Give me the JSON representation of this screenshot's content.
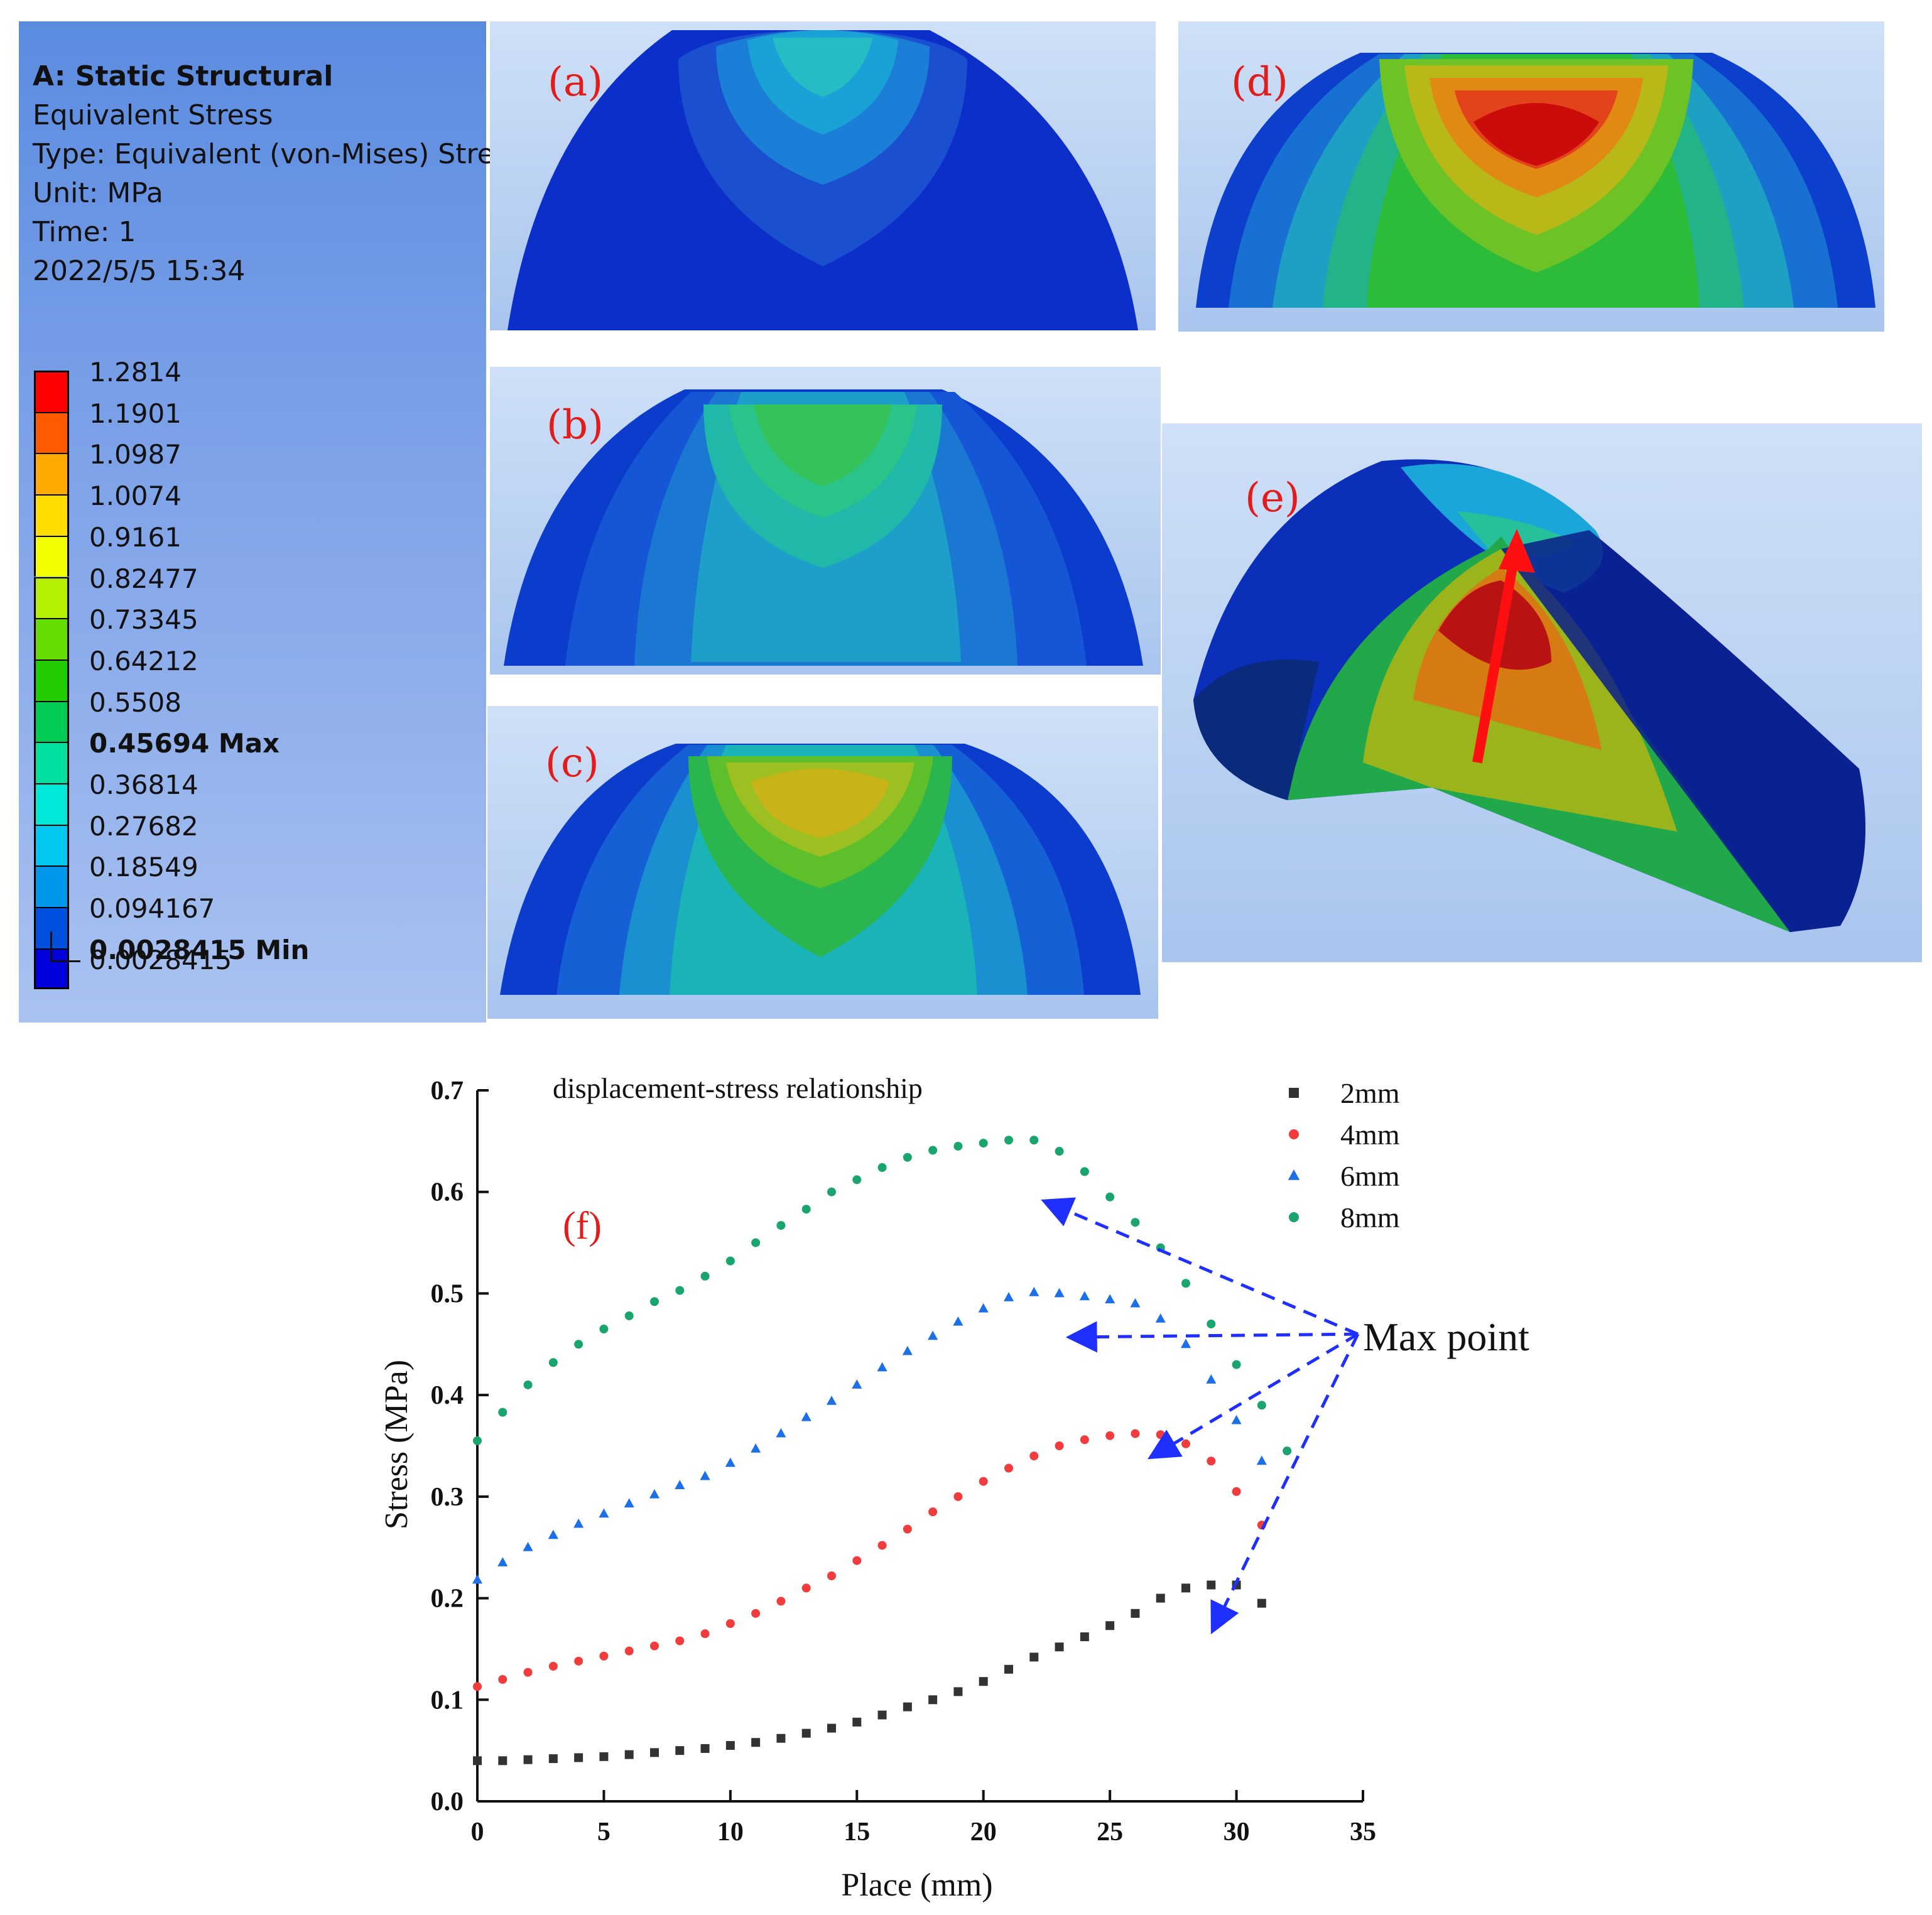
{
  "legend": {
    "title": "A: Static Structural",
    "lines": [
      "Equivalent Stress",
      "Type: Equivalent (von-Mises) Stress",
      "Unit: MPa",
      "Time: 1",
      "2022/5/5 15:34"
    ],
    "scale": [
      {
        "label": "1.2814",
        "color": "#ff0000"
      },
      {
        "label": "1.1901",
        "color": "#ff5a00"
      },
      {
        "label": "1.0987",
        "color": "#ffaa00"
      },
      {
        "label": "1.0074",
        "color": "#ffdd00"
      },
      {
        "label": "0.9161",
        "color": "#f2ff00"
      },
      {
        "label": "0.82477",
        "color": "#b4f000"
      },
      {
        "label": "0.73345",
        "color": "#66dd00"
      },
      {
        "label": "0.64212",
        "color": "#22cc00"
      },
      {
        "label": "0.5508",
        "color": "#00cc55"
      },
      {
        "label": "0.45694 Max",
        "color": "#00e0a0"
      },
      {
        "label": "0.36814",
        "color": "#00e8d8"
      },
      {
        "label": "0.27682",
        "color": "#00c8f0"
      },
      {
        "label": "0.18549",
        "color": "#0096ec"
      },
      {
        "label": "0.094167",
        "color": "#0050e0"
      },
      {
        "label": "0.0028415 Min",
        "color": "#0000dd"
      }
    ],
    "bottom_value": "0.0028415"
  },
  "panels": {
    "a": {
      "label": "(a)"
    },
    "b": {
      "label": "(b)"
    },
    "c": {
      "label": "(c)"
    },
    "d": {
      "label": "(d)"
    },
    "e": {
      "label": "(e)"
    }
  },
  "colors": {
    "red_label": "#e21b1b",
    "arrow_blue": "#1f2fff"
  },
  "chart_data": {
    "type": "scatter",
    "panel_label": "(f)",
    "title": "displacement-stress relationship",
    "xlabel": "Place (mm)",
    "ylabel": "Stress (MPa)",
    "xlim": [
      0,
      35
    ],
    "ylim": [
      0.0,
      0.7
    ],
    "xticks": [
      0,
      5,
      10,
      15,
      20,
      25,
      30,
      35
    ],
    "xtick_labels": [
      "0",
      "5",
      "10",
      "15",
      "20",
      "25",
      "30",
      "35"
    ],
    "yticks": [
      0.0,
      0.1,
      0.2,
      0.3,
      0.4,
      0.5,
      0.6,
      0.7
    ],
    "ytick_labels": [
      "0.0",
      "0.1",
      "0.2",
      "0.3",
      "0.4",
      "0.5",
      "0.6",
      "0.7"
    ],
    "annotation": "Max point",
    "annotation_anchor": [
      34.8,
      0.46
    ],
    "annotation_targets": [
      [
        22.5,
        0.59
      ],
      [
        23.5,
        0.457
      ],
      [
        26.7,
        0.34
      ],
      [
        29.1,
        0.17
      ]
    ],
    "series": [
      {
        "name": "2mm",
        "marker": "square",
        "color": "#333333",
        "x": [
          0,
          1,
          2,
          3,
          4,
          5,
          6,
          7,
          8,
          9,
          10,
          11,
          12,
          13,
          14,
          15,
          16,
          17,
          18,
          19,
          20,
          21,
          22,
          23,
          24,
          25,
          26,
          27,
          28,
          29,
          30,
          31
        ],
        "y": [
          0.04,
          0.04,
          0.041,
          0.042,
          0.043,
          0.044,
          0.046,
          0.048,
          0.05,
          0.052,
          0.055,
          0.058,
          0.062,
          0.067,
          0.072,
          0.078,
          0.085,
          0.093,
          0.1,
          0.108,
          0.118,
          0.13,
          0.142,
          0.152,
          0.162,
          0.173,
          0.185,
          0.2,
          0.21,
          0.213,
          0.213,
          0.195
        ]
      },
      {
        "name": "4mm",
        "marker": "circle",
        "color": "#f03c3c",
        "x": [
          0,
          1,
          2,
          3,
          4,
          5,
          6,
          7,
          8,
          9,
          10,
          11,
          12,
          13,
          14,
          15,
          16,
          17,
          18,
          19,
          20,
          21,
          22,
          23,
          24,
          25,
          26,
          27,
          28,
          29,
          30,
          31
        ],
        "y": [
          0.113,
          0.12,
          0.127,
          0.133,
          0.138,
          0.143,
          0.148,
          0.153,
          0.158,
          0.165,
          0.175,
          0.185,
          0.197,
          0.21,
          0.222,
          0.237,
          0.252,
          0.268,
          0.285,
          0.3,
          0.315,
          0.328,
          0.34,
          0.35,
          0.356,
          0.36,
          0.362,
          0.361,
          0.352,
          0.335,
          0.305,
          0.272
        ]
      },
      {
        "name": "6mm",
        "marker": "triangle",
        "color": "#1c6fe6",
        "x": [
          0,
          1,
          2,
          3,
          4,
          5,
          6,
          7,
          8,
          9,
          10,
          11,
          12,
          13,
          14,
          15,
          16,
          17,
          18,
          19,
          20,
          21,
          22,
          23,
          24,
          25,
          26,
          27,
          28,
          29,
          30,
          31
        ],
        "y": [
          0.218,
          0.235,
          0.25,
          0.262,
          0.273,
          0.283,
          0.293,
          0.302,
          0.311,
          0.32,
          0.333,
          0.347,
          0.362,
          0.378,
          0.394,
          0.41,
          0.427,
          0.443,
          0.458,
          0.472,
          0.485,
          0.496,
          0.501,
          0.5,
          0.497,
          0.494,
          0.49,
          0.475,
          0.45,
          0.415,
          0.375,
          0.335
        ]
      },
      {
        "name": "8mm",
        "marker": "circle",
        "color": "#1aa56e",
        "x": [
          0,
          1,
          2,
          3,
          4,
          5,
          6,
          7,
          8,
          9,
          10,
          11,
          12,
          13,
          14,
          15,
          16,
          17,
          18,
          19,
          20,
          21,
          22,
          23,
          24,
          25,
          26,
          27,
          28,
          29,
          30,
          31,
          32
        ],
        "y": [
          0.355,
          0.383,
          0.41,
          0.432,
          0.45,
          0.465,
          0.478,
          0.492,
          0.503,
          0.517,
          0.532,
          0.55,
          0.567,
          0.583,
          0.6,
          0.612,
          0.624,
          0.634,
          0.641,
          0.645,
          0.648,
          0.651,
          0.651,
          0.64,
          0.62,
          0.595,
          0.57,
          0.545,
          0.51,
          0.47,
          0.43,
          0.39,
          0.345
        ]
      }
    ]
  }
}
